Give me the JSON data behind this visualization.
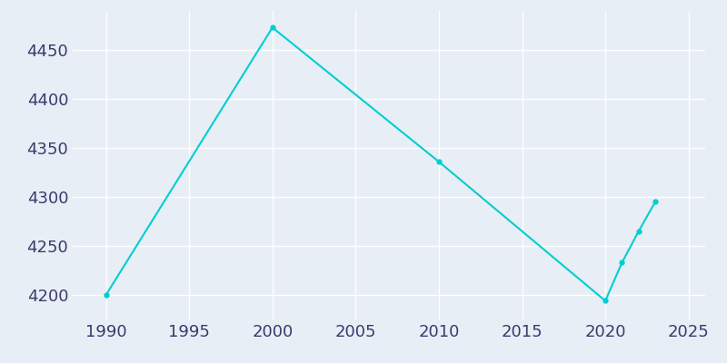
{
  "years": [
    1990,
    2000,
    2010,
    2020,
    2021,
    2022,
    2023
  ],
  "population": [
    4200,
    4473,
    4336,
    4194,
    4233,
    4265,
    4295
  ],
  "line_color": "#00CED1",
  "marker": "o",
  "marker_size": 3.5,
  "bg_color": "#e8eef5",
  "fig_bg_color": "#e8eef5",
  "grid_color": "#ffffff",
  "tick_label_color": "#3a3a6e",
  "xlim": [
    1988,
    2026
  ],
  "ylim": [
    4175,
    4490
  ],
  "xticks": [
    1990,
    1995,
    2000,
    2005,
    2010,
    2015,
    2020,
    2025
  ],
  "yticks": [
    4200,
    4250,
    4300,
    4350,
    4400,
    4450
  ],
  "tick_fontsize": 13,
  "line_width": 1.5
}
